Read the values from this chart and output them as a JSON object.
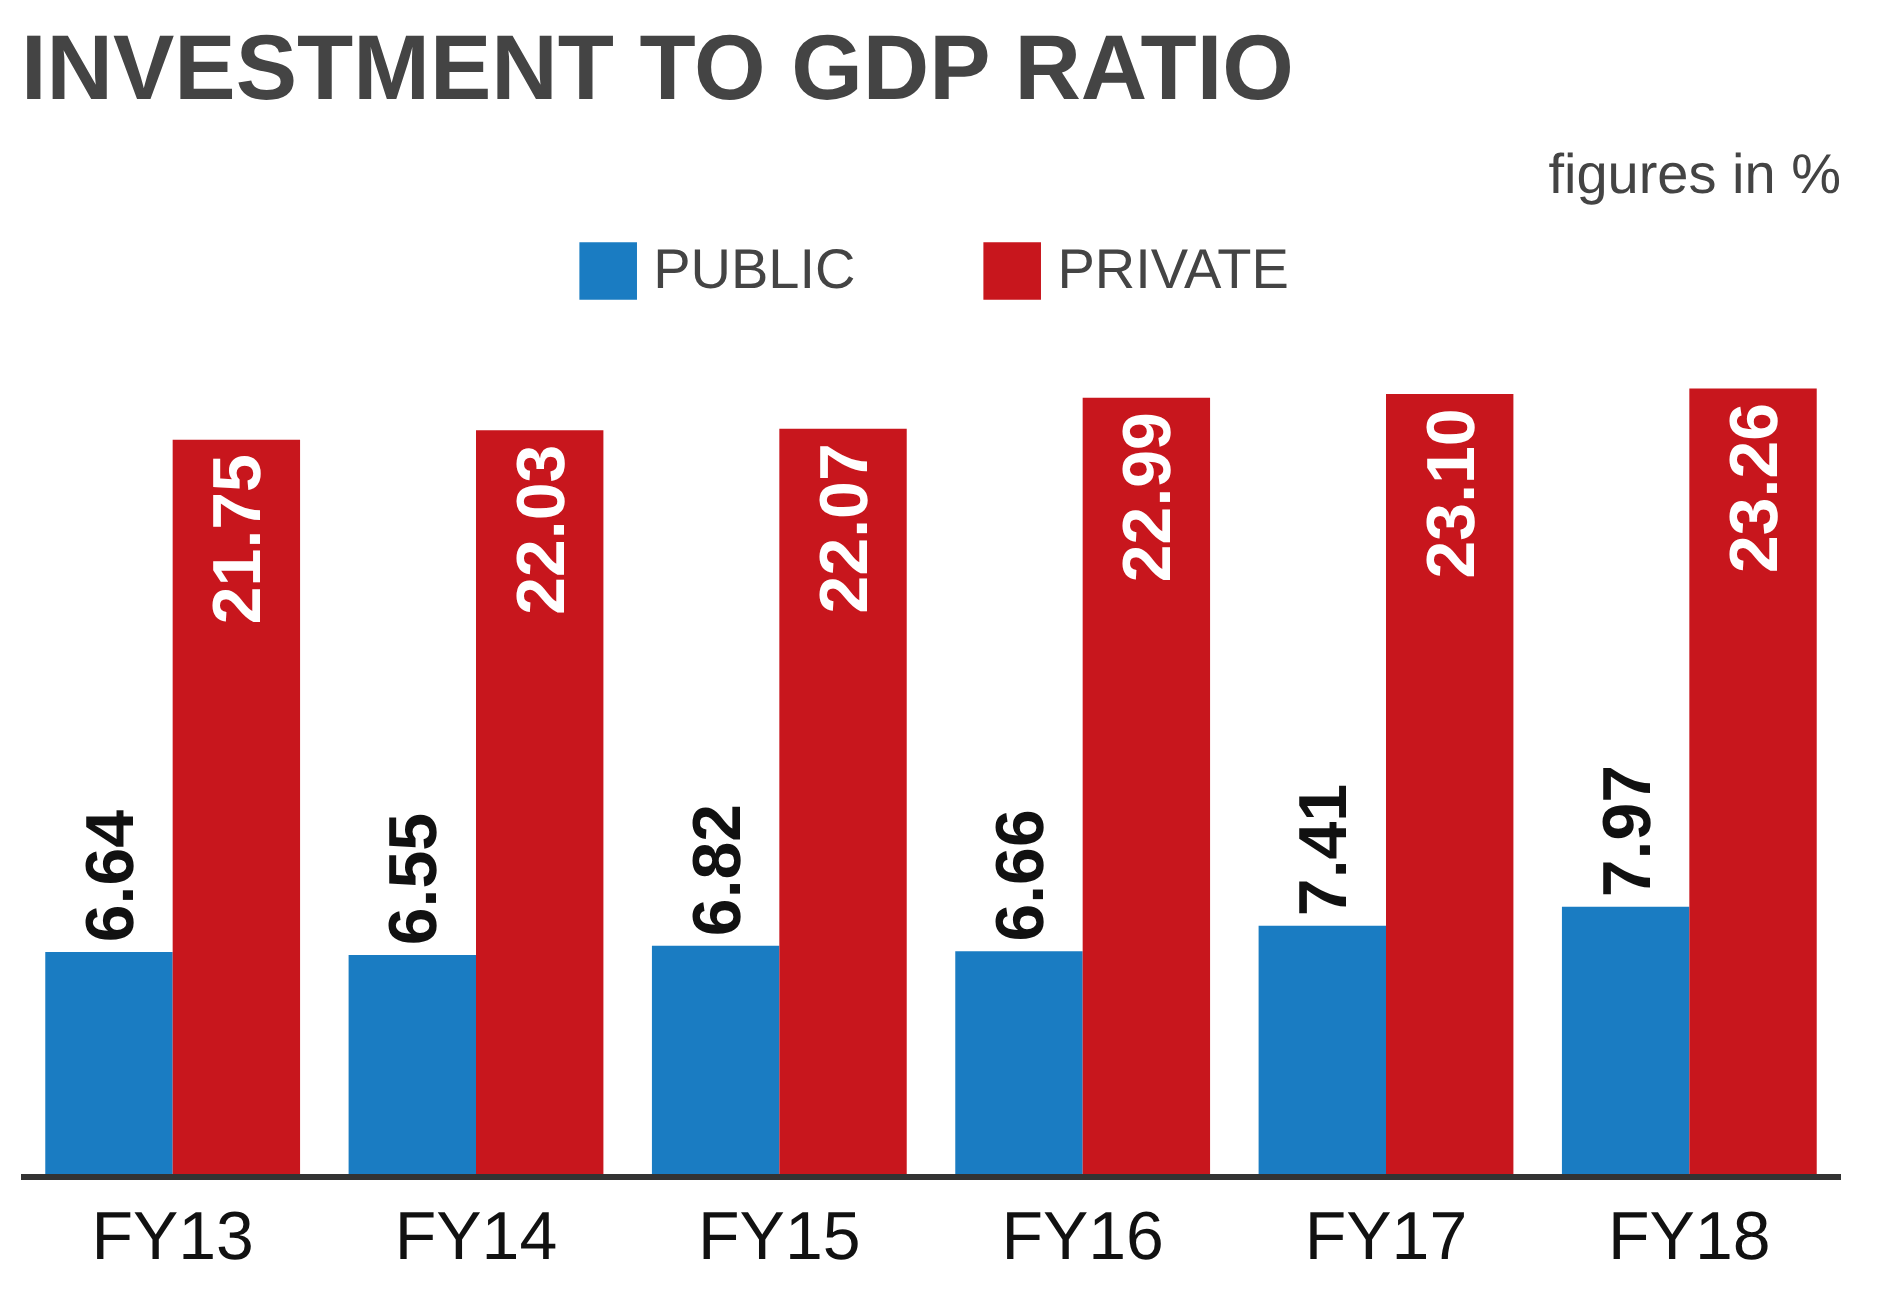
{
  "chart_data": {
    "type": "bar",
    "title": "INVESTMENT TO GDP RATIO",
    "subtitle": "figures in %",
    "categories": [
      "FY13",
      "FY14",
      "FY15",
      "FY16",
      "FY17",
      "FY18"
    ],
    "series": [
      {
        "name": "PUBLIC",
        "color": "#1a7cc2",
        "values": [
          6.64,
          6.55,
          6.82,
          6.66,
          7.41,
          7.97
        ],
        "value_labels": [
          "6.64",
          "6.55",
          "6.82",
          "6.66",
          "7.41",
          "7.97"
        ]
      },
      {
        "name": "PRIVATE",
        "color": "#c8161d",
        "values": [
          21.75,
          22.03,
          22.07,
          22.99,
          23.1,
          23.26
        ],
        "value_labels": [
          "21.75",
          "22.03",
          "22.07",
          "22.99",
          "23.10",
          "23.26"
        ]
      }
    ],
    "legend": "top"
  }
}
